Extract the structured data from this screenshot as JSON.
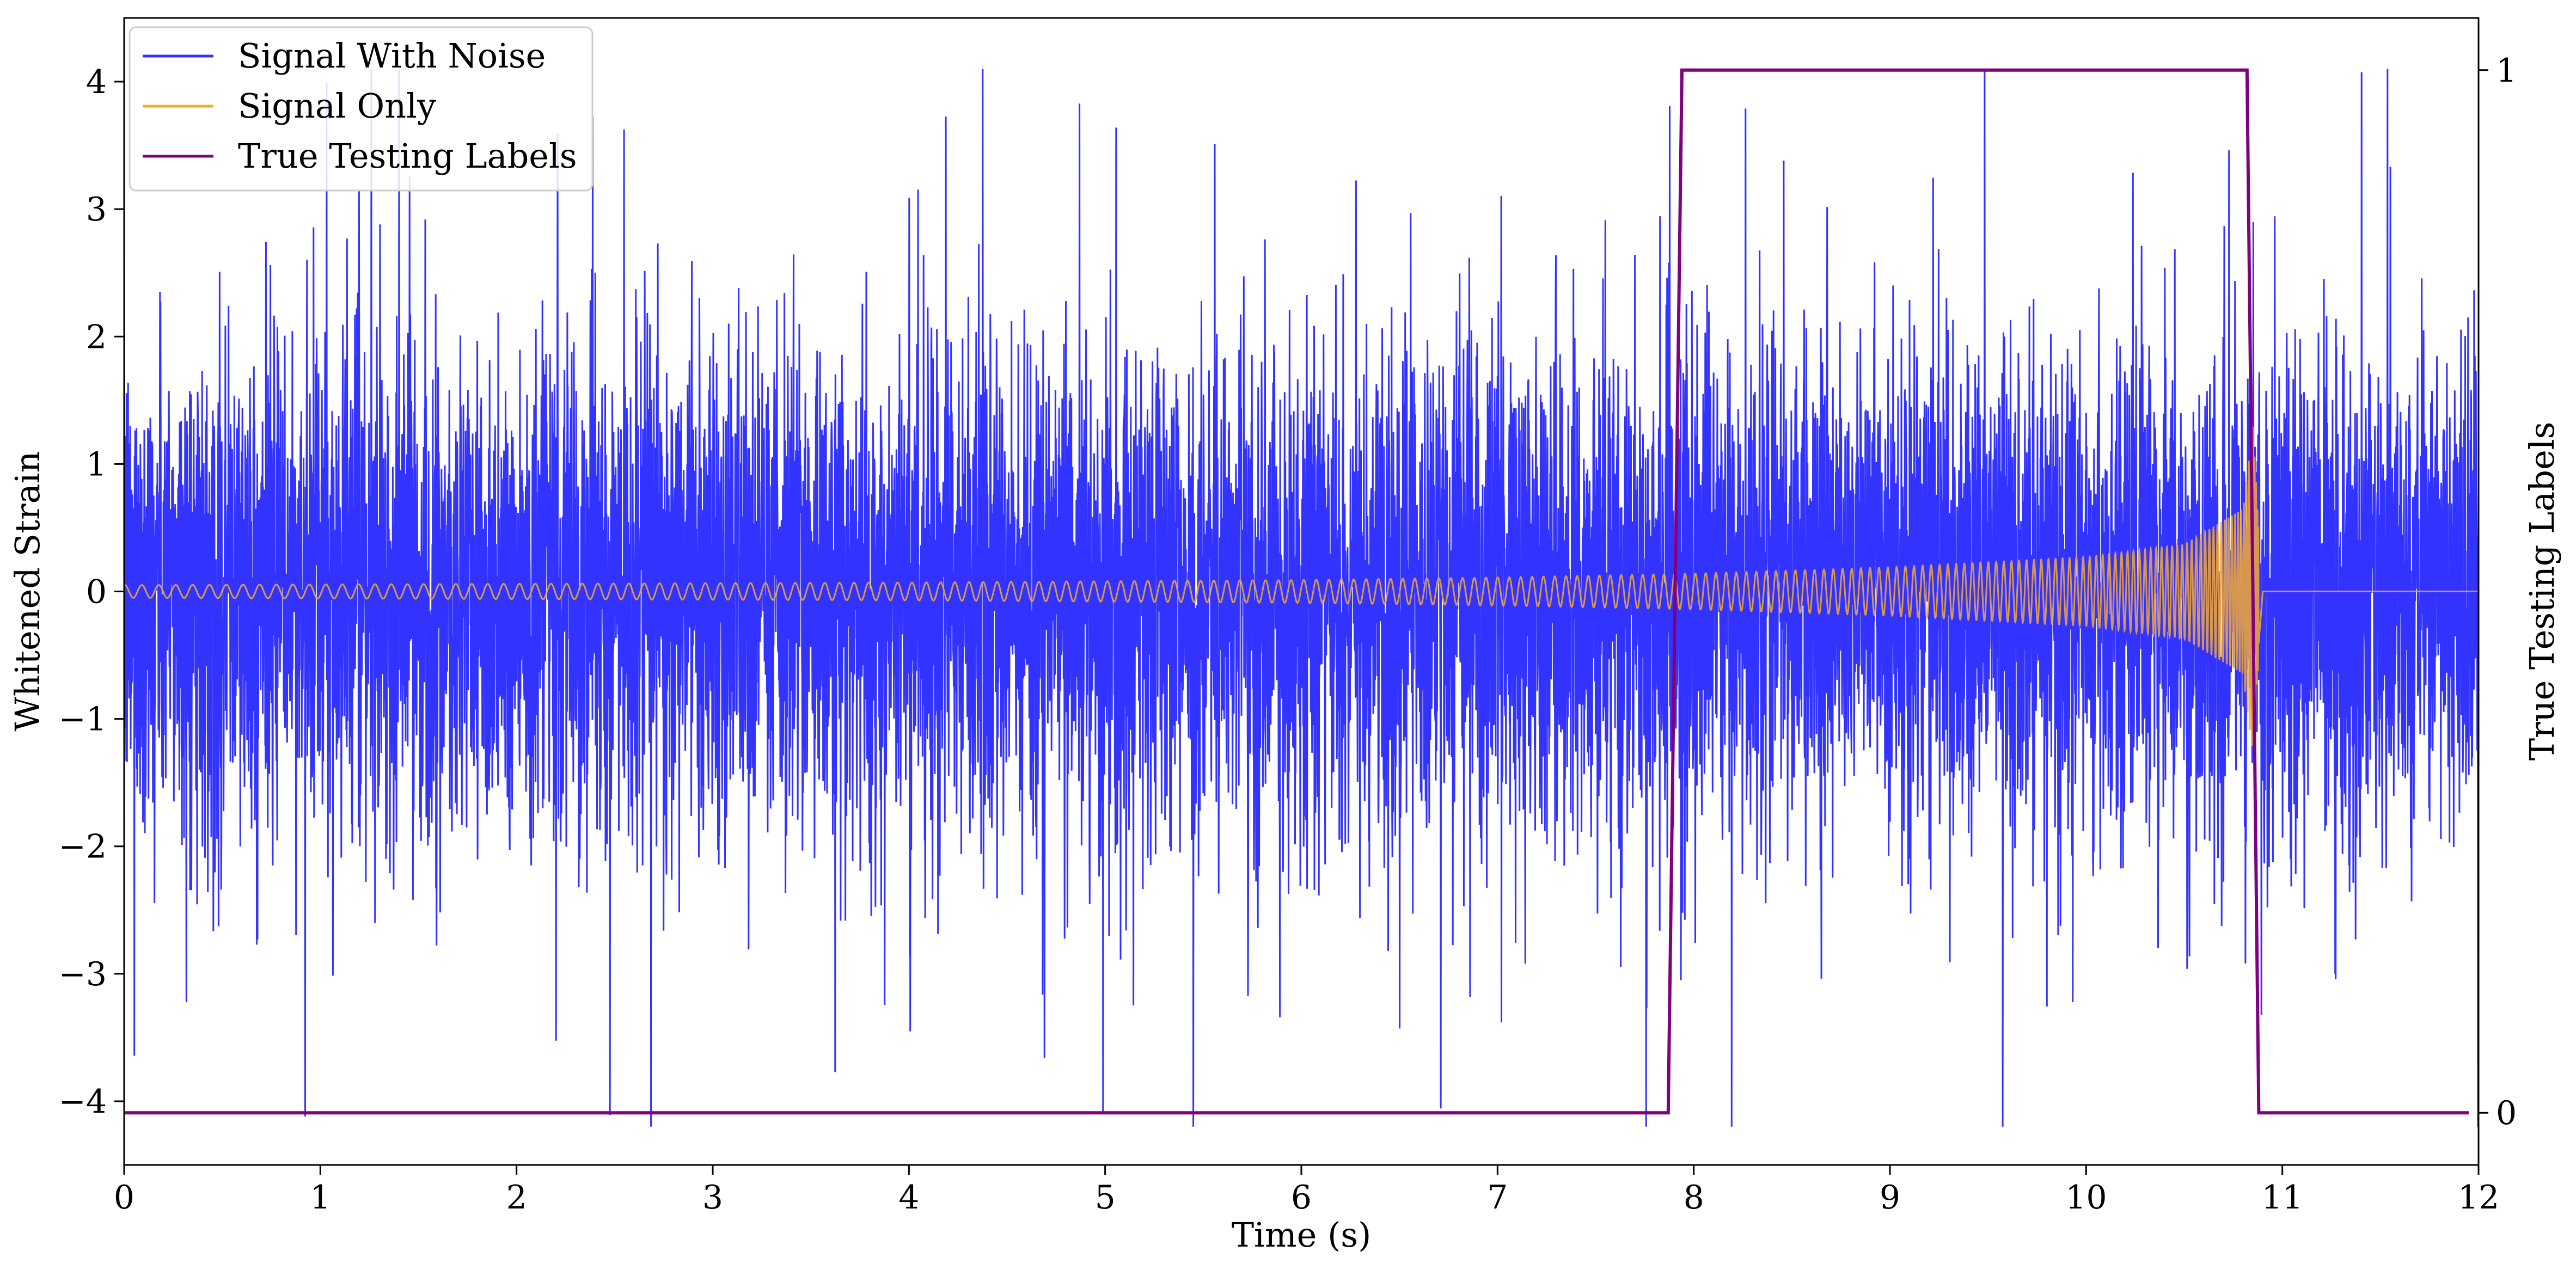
{
  "chart_data": {
    "type": "line",
    "title": "",
    "xlabel": "Time (s)",
    "ylabel": "Whitened Strain",
    "y2label": "True Testing Labels",
    "xlim": [
      0,
      12
    ],
    "ylim": [
      -4.5,
      4.5
    ],
    "y2lim": [
      -0.05,
      1.05
    ],
    "x_ticks": [
      0,
      1,
      2,
      3,
      4,
      5,
      6,
      7,
      8,
      9,
      10,
      11,
      12
    ],
    "x_tick_labels": [
      "0",
      "1",
      "2",
      "3",
      "4",
      "5",
      "6",
      "7",
      "8",
      "9",
      "10",
      "11",
      "12"
    ],
    "y_ticks": [
      -4,
      -3,
      -2,
      -1,
      0,
      1,
      2,
      3,
      4
    ],
    "y_tick_labels": [
      "−4",
      "−3",
      "−2",
      "−1",
      "0",
      "1",
      "2",
      "3",
      "4"
    ],
    "y2_ticks": [
      0,
      1
    ],
    "y2_tick_labels": [
      "0",
      "1"
    ],
    "grid": false,
    "legend_position": "top-left",
    "series": [
      {
        "name": "Signal With Noise",
        "color": "#3333ff",
        "axis": "left",
        "description_values": {
          "x_range": [
            0,
            12
          ],
          "typical_amplitude": [
            -1.8,
            1.8
          ],
          "peak_max": 4.1,
          "peak_min": -4.2
        }
      },
      {
        "name": "Signal Only",
        "color": "#f4a934",
        "axis": "left",
        "envelope": {
          "x": [
            0,
            2,
            4,
            6,
            7,
            8,
            9,
            10,
            10.5,
            10.8,
            10.85,
            10.9,
            12
          ],
          "amplitude": [
            0.05,
            0.06,
            0.07,
            0.09,
            0.11,
            0.14,
            0.19,
            0.27,
            0.37,
            0.65,
            1.3,
            0,
            0
          ]
        }
      },
      {
        "name": "True Testing Labels",
        "color": "#800080",
        "axis": "right",
        "x": [
          0,
          7.87,
          7.94,
          10.82,
          10.88,
          11.95
        ],
        "y": [
          0,
          0,
          1,
          1,
          0,
          0
        ]
      }
    ]
  }
}
